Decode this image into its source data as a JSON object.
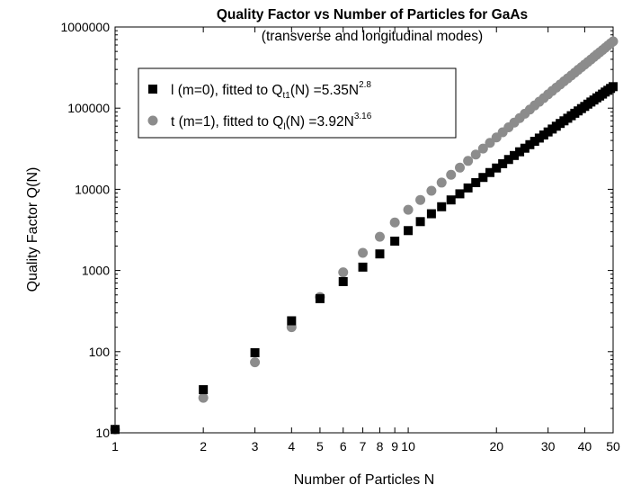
{
  "chart_data": {
    "type": "scatter",
    "title": "Quality Factor vs Number of Particles for GaAs",
    "subtitle": "(transverse and longitudinal modes)",
    "xlabel": "Number of Particles N",
    "ylabel": "Quality Factor Q(N)",
    "xscale": "log",
    "yscale": "log",
    "xlim": [
      1,
      50
    ],
    "ylim": [
      10,
      1000000
    ],
    "x_ticks": [
      1,
      2,
      3,
      4,
      5,
      6,
      7,
      8,
      9,
      10,
      20,
      30,
      40,
      50
    ],
    "x_tick_labels": [
      "1",
      "2",
      "3",
      "4",
      "5",
      "6",
      "7",
      "8",
      "9",
      "10",
      "20",
      "30",
      "40",
      "50"
    ],
    "y_ticks": [
      10,
      100,
      1000,
      10000,
      100000,
      1000000
    ],
    "y_tick_labels": [
      "10",
      "100",
      "1000",
      "10000",
      "100000",
      "1000000"
    ],
    "legend_position": "top-left",
    "series": [
      {
        "name": "l (m=0), fitted to Q_t1(N) =5.35N^2.8",
        "legend": {
          "main": "l (m=0), fitted to Q",
          "sub": "t1",
          "mid": "(N) =5.35N",
          "sup": "2.8"
        },
        "marker": "square",
        "color": "#000000",
        "x": [
          1,
          2,
          3,
          4,
          5,
          6,
          7,
          8,
          9,
          10,
          11,
          12,
          13,
          14,
          15,
          16,
          17,
          18,
          19,
          20,
          21,
          22,
          23,
          24,
          25,
          26,
          27,
          28,
          29,
          30,
          31,
          32,
          33,
          34,
          35,
          36,
          37,
          38,
          39,
          40,
          41,
          42,
          43,
          44,
          45,
          46,
          47,
          48,
          49,
          50
        ],
        "y": [
          11,
          34,
          97,
          240,
          450,
          730,
          1100,
          1600,
          2300,
          3100,
          4000,
          5000,
          6100,
          7400,
          8800,
          10400,
          12100,
          14000,
          16100,
          18300,
          20700,
          23300,
          26100,
          29000,
          32100,
          35500,
          39000,
          42800,
          46700,
          50900,
          55300,
          59900,
          64800,
          69800,
          75100,
          80700,
          86500,
          92500,
          98800,
          105000,
          112000,
          119000,
          126000,
          134000,
          141000,
          149000,
          158000,
          166000,
          175000,
          184000
        ]
      },
      {
        "name": "t (m=1), fitted to Q_l(N) =3.92N^3.16",
        "legend": {
          "main": "t (m=1), fitted to Q",
          "sub": "l",
          "mid": "(N) =3.92N",
          "sup": "3.16"
        },
        "marker": "circle",
        "color": "#8c8c8c",
        "x": [
          1,
          2,
          3,
          4,
          5,
          6,
          7,
          8,
          9,
          10,
          11,
          12,
          13,
          14,
          15,
          16,
          17,
          18,
          19,
          20,
          21,
          22,
          23,
          24,
          25,
          26,
          27,
          28,
          29,
          30,
          31,
          32,
          33,
          34,
          35,
          36,
          37,
          38,
          39,
          40,
          41,
          42,
          43,
          44,
          45,
          46,
          47,
          48,
          49,
          50
        ],
        "y": [
          11,
          27,
          74,
          200,
          470,
          950,
          1650,
          2600,
          3900,
          5600,
          7400,
          9600,
          12100,
          15100,
          18500,
          22400,
          26800,
          31800,
          37400,
          43600,
          50500,
          58100,
          66400,
          75500,
          85400,
          96100,
          108000,
          120000,
          133000,
          148000,
          163000,
          179000,
          196000,
          214000,
          233000,
          253000,
          274000,
          297000,
          320000,
          345000,
          371000,
          398000,
          427000,
          457000,
          488000,
          520000,
          554000,
          590000,
          627000,
          665000
        ]
      }
    ]
  }
}
